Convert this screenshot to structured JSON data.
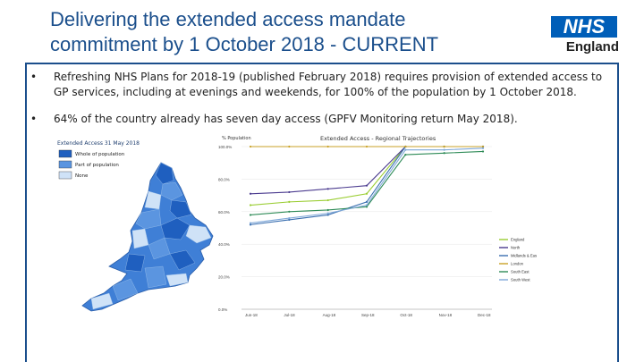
{
  "slide": {
    "title": "Delivering the extended access mandate commitment by 1 October 2018 - CURRENT",
    "logo_nhs": "NHS",
    "logo_england": "England",
    "bullets": [
      "Refreshing NHS Plans for 2018-19 (published February 2018) requires provision of extended access to GP services, including at evenings and weekends, for 100% of the population by 1 October 2018.",
      "64% of the country already has seven day access (GPFV Monitoring return May 2018)."
    ],
    "bullet_symbol": "•"
  },
  "map": {
    "title": "Extended Access 31 May 2018",
    "legend": [
      {
        "label": "Whole of population",
        "color": "#1f5fbf"
      },
      {
        "label": "Part of population",
        "color": "#5b95e0"
      },
      {
        "label": "None",
        "color": "#cfe2f7"
      }
    ]
  },
  "chart_data": {
    "type": "line",
    "title": "Extended Access - Regional Trajectories",
    "ylabel": "% Population",
    "ylim": [
      0,
      100
    ],
    "y_ticks": [
      "100.0%",
      "80.0%",
      "60.0%",
      "40.0%",
      "20.0%",
      "0.0%"
    ],
    "categories": [
      "Jun-18",
      "Jul-18",
      "Aug-18",
      "Sep-18",
      "Oct-18",
      "Nov-18",
      "Dec-18"
    ],
    "legend_position": "right",
    "series": [
      {
        "name": "England",
        "color": "#9acd32",
        "values": [
          64,
          66,
          67,
          71,
          100,
          100,
          100
        ]
      },
      {
        "name": "North",
        "color": "#4b3b8f",
        "values": [
          71,
          72,
          74,
          76,
          100,
          100,
          100
        ]
      },
      {
        "name": "Midlands & East",
        "color": "#3a6fb0",
        "values": [
          52,
          55,
          58,
          66,
          100,
          100,
          100
        ]
      },
      {
        "name": "London",
        "color": "#c9a227",
        "values": [
          100,
          100,
          100,
          100,
          100,
          100,
          100
        ]
      },
      {
        "name": "South East",
        "color": "#2e8b57",
        "values": [
          58,
          60,
          61,
          63,
          95,
          96,
          97
        ]
      },
      {
        "name": "South West",
        "color": "#7fa8d8",
        "values": [
          53,
          56,
          59,
          64,
          98,
          98,
          99
        ]
      }
    ]
  }
}
